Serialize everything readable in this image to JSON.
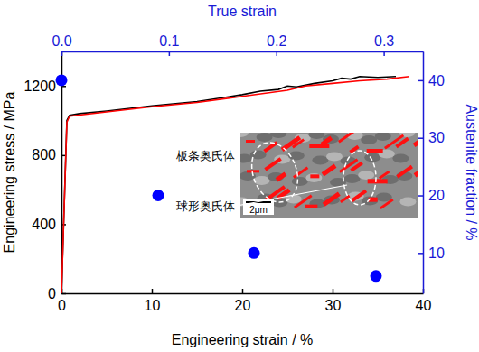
{
  "chart_data": {
    "type": "line",
    "xlabel": "Engineering strain / %",
    "ylabel": "Engineering stress / MPa",
    "y2label": "Austenite fraction / %",
    "x2label": "True strain",
    "xlim": [
      0,
      40
    ],
    "xticks": [
      0,
      10,
      20,
      30,
      40
    ],
    "ylim": [
      0,
      1400
    ],
    "yticks": [
      0,
      400,
      800,
      1200
    ],
    "y2lim": [
      3,
      45
    ],
    "y2ticks": [
      10,
      20,
      30,
      40
    ],
    "x2lim": [
      0,
      0.3365
    ],
    "x2ticks": [
      {
        "value": 0,
        "label": "0.0"
      },
      0.1,
      0.2,
      0.3
    ],
    "series": [
      {
        "type": "line",
        "color": "#000000",
        "x": [
          0,
          0.6,
          0.9,
          2,
          5,
          10,
          15,
          20,
          22,
          24,
          25,
          26,
          28,
          30,
          31,
          32,
          33,
          35,
          37
        ],
        "values": [
          0,
          1000,
          1030,
          1040,
          1055,
          1085,
          1110,
          1150,
          1170,
          1180,
          1200,
          1195,
          1215,
          1230,
          1245,
          1240,
          1255,
          1250,
          1255
        ]
      },
      {
        "type": "line",
        "color": "#ff0000",
        "x": [
          0,
          0.6,
          0.9,
          5,
          10,
          15,
          20,
          25,
          27,
          30,
          33,
          36,
          38.5
        ],
        "values": [
          0,
          990,
          1025,
          1050,
          1080,
          1105,
          1140,
          1175,
          1200,
          1215,
          1230,
          1240,
          1255
        ]
      },
      {
        "type": "scatter",
        "axis": "y2",
        "color": "#0000ff",
        "marker": "circle",
        "x": [
          0,
          10.7,
          21.3,
          34.8
        ],
        "values": [
          40,
          20,
          10,
          6
        ]
      }
    ],
    "annotations": [
      "板条奥氏体",
      "球形奥氏体",
      "2μm"
    ]
  }
}
